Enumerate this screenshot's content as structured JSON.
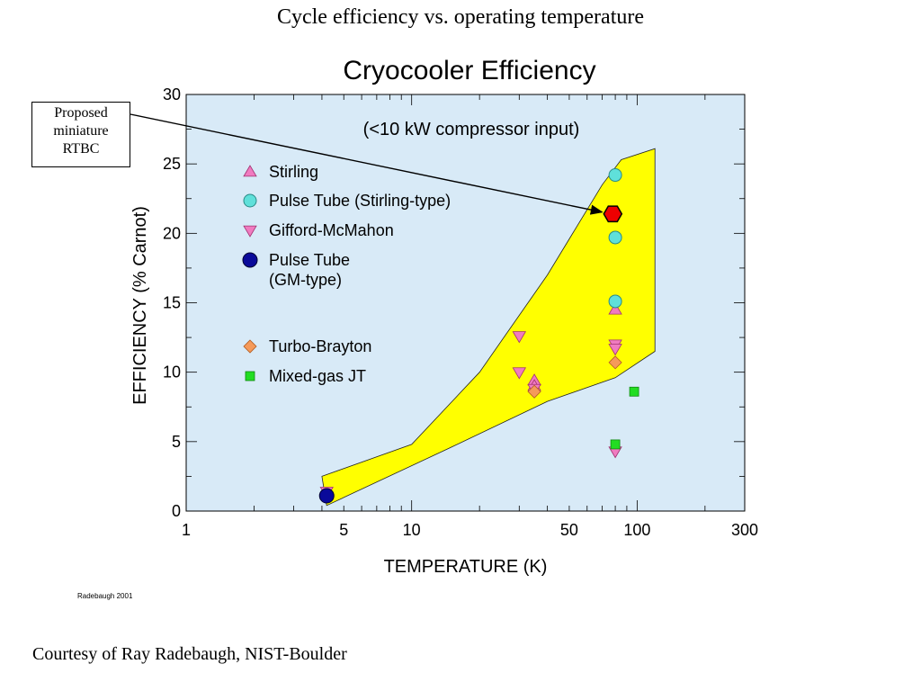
{
  "slide_title": "Cycle efficiency vs. operating temperature",
  "credit_small": "Radebaugh 2001",
  "courtesy": "Courtesy of Ray Radebaugh, NIST-Boulder",
  "callout": {
    "lines": [
      "Proposed",
      "miniature",
      "RTBC"
    ]
  },
  "colors": {
    "plot_background": "#d8eaf7",
    "band": "#ffff00",
    "stirling": "#f07bc0",
    "pulse_tube_stirling": "#5fe0da",
    "gifford_mcmahon": "#f07bc0",
    "pulse_tube_gm": "#0a0a9a",
    "turbo_brayton": "#f59a5a",
    "mixed_gas_jt": "#22dd22",
    "rtbc": "#ee0000"
  },
  "chart_data": {
    "type": "scatter",
    "title": "Cryocooler Efficiency",
    "subtitle": "(<10 kW compressor input)",
    "xlabel": "TEMPERATURE (K)",
    "ylabel": "EFFICIENCY (% Carnot)",
    "xscale": "log",
    "xlim": [
      1,
      300
    ],
    "ylim": [
      0,
      30
    ],
    "x_ticks": [
      1,
      5,
      10,
      50,
      100,
      300
    ],
    "y_ticks": [
      0,
      5,
      10,
      15,
      20,
      25,
      30
    ],
    "grid": false,
    "legend_placement": "top-left",
    "band": {
      "upper": [
        [
          4,
          2.5
        ],
        [
          10,
          4.8
        ],
        [
          20,
          10
        ],
        [
          40,
          17
        ],
        [
          70,
          23.5
        ],
        [
          85,
          25.3
        ],
        [
          120,
          26.1
        ]
      ],
      "lower": [
        [
          120,
          11.5
        ],
        [
          80,
          9.6
        ],
        [
          40,
          7.9
        ],
        [
          15,
          4.6
        ],
        [
          4.2,
          0.4
        ]
      ]
    },
    "series": [
      {
        "name": "Stirling",
        "marker": "triangle-up",
        "points": [
          [
            35,
            9.4
          ],
          [
            35,
            9.0
          ],
          [
            80,
            14.5
          ]
        ]
      },
      {
        "name": "Pulse Tube (Stirling-type)",
        "marker": "circle",
        "points": [
          [
            80,
            24.2
          ],
          [
            80,
            19.7
          ],
          [
            80,
            15.1
          ]
        ]
      },
      {
        "name": "Gifford-McMahon",
        "marker": "triangle-down",
        "points": [
          [
            4.2,
            1.4
          ],
          [
            30,
            12.6
          ],
          [
            30,
            10.0
          ],
          [
            35,
            8.8
          ],
          [
            80,
            12.0
          ],
          [
            80,
            11.7
          ],
          [
            80,
            4.3
          ]
        ]
      },
      {
        "name": "Pulse Tube\n(GM-type)",
        "marker": "circle-large",
        "points": [
          [
            4.2,
            1.1
          ]
        ]
      },
      {
        "name": "Turbo-Brayton",
        "marker": "diamond",
        "points": [
          [
            35,
            8.6
          ],
          [
            80,
            10.7
          ]
        ]
      },
      {
        "name": "Mixed-gas JT",
        "marker": "square",
        "points": [
          [
            80,
            4.8
          ],
          [
            97,
            8.6
          ]
        ]
      }
    ],
    "highlight": {
      "label": "Proposed miniature RTBC",
      "marker": "hexagon",
      "point": [
        78,
        21.4
      ]
    }
  }
}
